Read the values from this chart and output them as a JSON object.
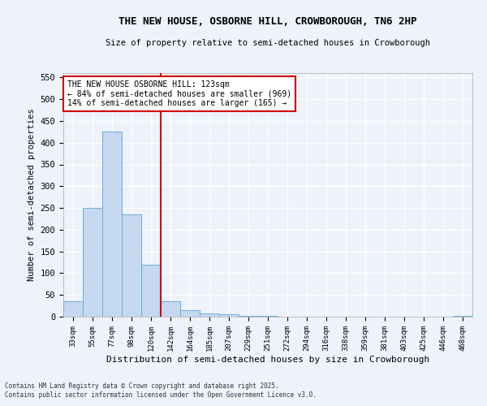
{
  "title": "THE NEW HOUSE, OSBORNE HILL, CROWBOROUGH, TN6 2HP",
  "subtitle": "Size of property relative to semi-detached houses in Crowborough",
  "xlabel": "Distribution of semi-detached houses by size in Crowborough",
  "ylabel": "Number of semi-detached properties",
  "bar_labels": [
    "33sqm",
    "55sqm",
    "77sqm",
    "98sqm",
    "120sqm",
    "142sqm",
    "164sqm",
    "185sqm",
    "207sqm",
    "229sqm",
    "251sqm",
    "272sqm",
    "294sqm",
    "316sqm",
    "338sqm",
    "359sqm",
    "381sqm",
    "403sqm",
    "425sqm",
    "446sqm",
    "468sqm"
  ],
  "bar_values": [
    35,
    250,
    425,
    235,
    120,
    35,
    15,
    8,
    5,
    2,
    2,
    0,
    0,
    0,
    0,
    0,
    0,
    0,
    0,
    0,
    2
  ],
  "bar_color": "#c5d8f0",
  "bar_edge_color": "#6aaed6",
  "vline_x_index": 4,
  "annotation_title": "THE NEW HOUSE OSBORNE HILL: 123sqm",
  "annotation_line1": "← 84% of semi-detached houses are smaller (969)",
  "annotation_line2": "14% of semi-detached houses are larger (165) →",
  "annotation_box_color": "#ffffff",
  "annotation_box_edge": "#cc0000",
  "vline_color": "#cc0000",
  "background_color": "#eef2fa",
  "grid_color": "#ffffff",
  "ylim": [
    0,
    560
  ],
  "yticks": [
    0,
    50,
    100,
    150,
    200,
    250,
    300,
    350,
    400,
    450,
    500,
    550
  ],
  "footnote1": "Contains HM Land Registry data © Crown copyright and database right 2025.",
  "footnote2": "Contains public sector information licensed under the Open Government Licence v3.0."
}
